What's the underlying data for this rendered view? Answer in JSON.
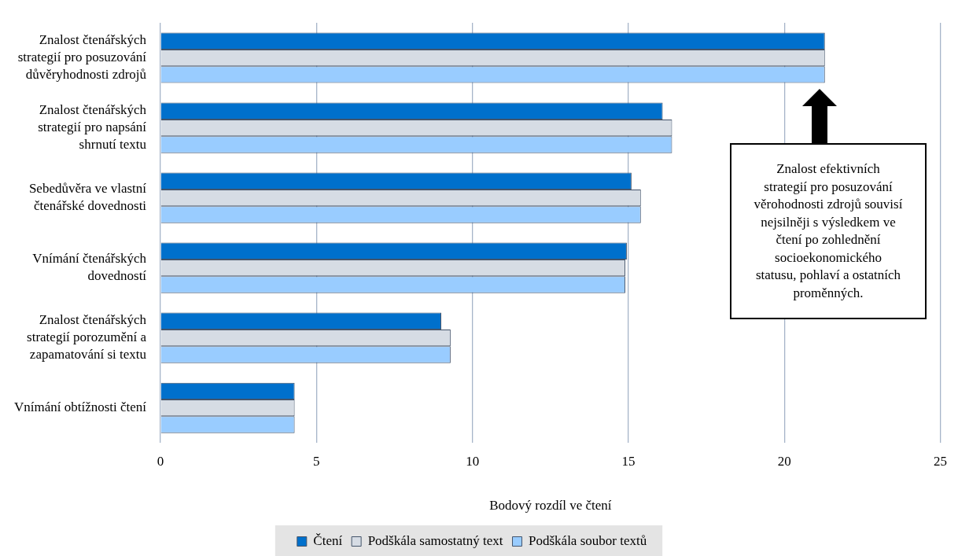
{
  "chart_data": {
    "type": "bar",
    "orientation": "horizontal",
    "xlabel": "Bodový rozdíl ve čtení",
    "categories": [
      "Znalost čtenářských strategií pro posuzování důvěryhodnosti zdrojů",
      "Znalost čtenářských strategií pro napsání shrnutí textu",
      "Sebedůvěra ve vlastní čtenářské dovednosti",
      "Vnímání čtenářských dovedností",
      "Znalost čtenářských strategií porozumění a zapamatování si textu",
      "Vnímání obtížnosti čtení"
    ],
    "series": [
      {
        "name": "Čtení",
        "color": "#0070cc",
        "values": [
          21.3,
          16.1,
          15.1,
          14.95,
          9.0,
          4.3
        ]
      },
      {
        "name": "Podškála samostatný text",
        "color": "#d6dce4",
        "values": [
          21.3,
          16.4,
          15.4,
          14.9,
          9.3,
          4.3
        ]
      },
      {
        "name": "Podškála soubor textů",
        "color": "#99ccff",
        "values": [
          21.3,
          16.4,
          15.4,
          14.9,
          9.3,
          4.3
        ]
      }
    ],
    "xlim": [
      0,
      25
    ],
    "xticks": [
      0,
      5,
      10,
      15,
      20,
      25
    ],
    "grid": "x",
    "legend": "bottom",
    "annotations": [
      "Znalost efektivních strategií pro posuzování věrohodnosti zdrojů souvisí nejsilněji s výsledkem ve čtení po zohlednění socioekonomického statusu, pohlaví a ostatních proměnných."
    ]
  }
}
